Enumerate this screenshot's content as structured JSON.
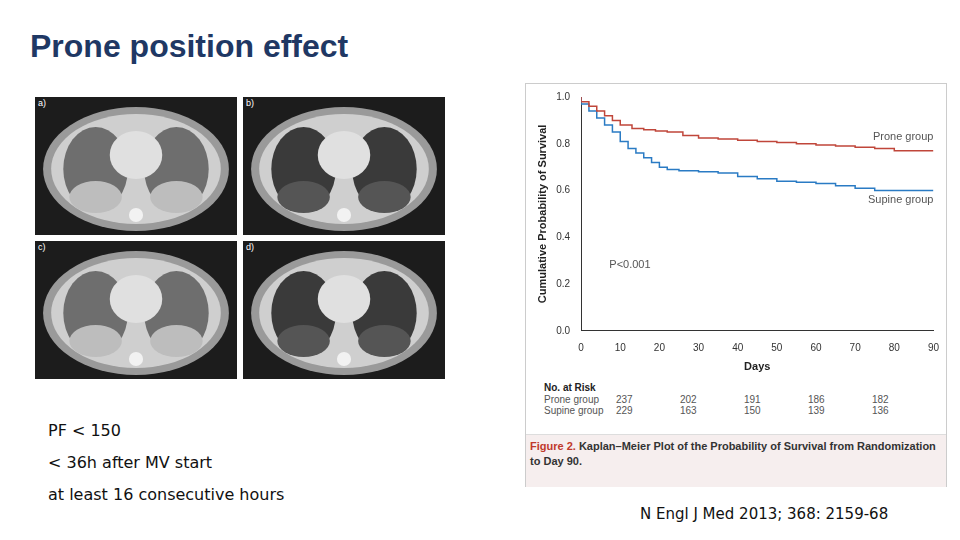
{
  "title": "Prone position effect",
  "images": {
    "panels": [
      "a)",
      "b)",
      "c)",
      "d)"
    ]
  },
  "criteria": [
    "PF < 150",
    "< 36h after MV start",
    "at least 16 consecutive hours"
  ],
  "citation": "N Engl J Med 2013; 368: 2159-68",
  "chart_data": {
    "type": "line",
    "line_style": "step",
    "y_label": "Cumulative Probability of Survival",
    "x_label": "Days",
    "annotation": "P<0.001",
    "grid": false,
    "xlim": [
      0,
      90
    ],
    "xticks": [
      0,
      10,
      20,
      30,
      40,
      50,
      60,
      70,
      80,
      90
    ],
    "ylim": [
      0,
      1
    ],
    "yticks": [
      {
        "value": 0,
        "label": "0.0"
      },
      {
        "value": 0.2,
        "label": "0.2"
      },
      {
        "value": 0.4,
        "label": "0.4"
      },
      {
        "value": 0.6,
        "label": "0.6"
      },
      {
        "value": 0.8,
        "label": "0.8"
      },
      {
        "value": 1,
        "label": "1.0"
      }
    ],
    "series": [
      {
        "name": "Prone group",
        "color": "#c0463a",
        "x": [
          0,
          2,
          4,
          6,
          8,
          10,
          13,
          16,
          19,
          22,
          26,
          30,
          35,
          40,
          45,
          50,
          55,
          60,
          65,
          70,
          75,
          80,
          85,
          90
        ],
        "values": [
          1.0,
          0.98,
          0.96,
          0.94,
          0.92,
          0.9,
          0.88,
          0.865,
          0.86,
          0.855,
          0.85,
          0.835,
          0.825,
          0.82,
          0.815,
          0.81,
          0.805,
          0.8,
          0.795,
          0.79,
          0.785,
          0.78,
          0.77,
          0.77
        ]
      },
      {
        "name": "Supine group",
        "color": "#2a7bc4",
        "x": [
          0,
          2,
          4,
          6,
          8,
          10,
          12,
          14,
          16,
          18,
          20,
          22,
          25,
          30,
          35,
          40,
          45,
          50,
          55,
          60,
          65,
          70,
          75,
          80,
          85,
          90
        ],
        "values": [
          1.0,
          0.97,
          0.94,
          0.91,
          0.88,
          0.85,
          0.81,
          0.78,
          0.76,
          0.74,
          0.72,
          0.7,
          0.69,
          0.685,
          0.68,
          0.675,
          0.66,
          0.65,
          0.64,
          0.635,
          0.63,
          0.62,
          0.61,
          0.6,
          0.6,
          0.6
        ]
      }
    ],
    "at_risk": {
      "title": "No. at Risk",
      "rows": [
        {
          "name": "Prone group",
          "values": [
            237,
            202,
            191,
            186,
            182
          ]
        },
        {
          "name": "Supine group",
          "values": [
            229,
            163,
            150,
            139,
            136
          ]
        }
      ]
    },
    "caption": {
      "label": "Figure 2.",
      "text": "Kaplan–Meier Plot of the Probability of Survival from Randomization to Day 90."
    }
  }
}
